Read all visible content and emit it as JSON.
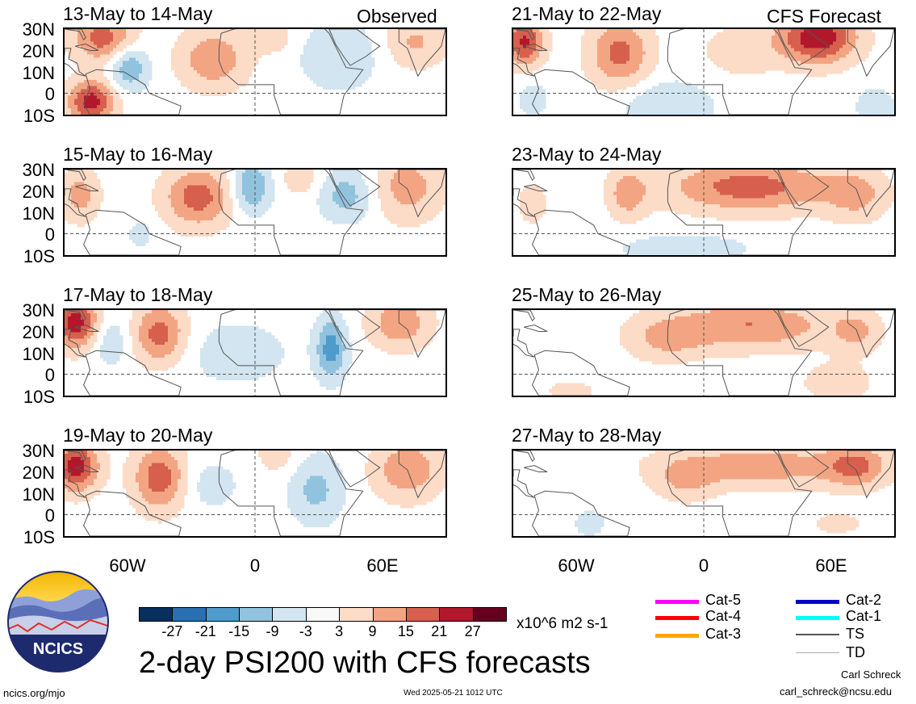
{
  "left_tag": "Observed",
  "right_tag": "CFS Forecast",
  "panels": [
    {
      "title": "13-May to 14-May",
      "blobs": [
        [
          0.1,
          0.1,
          0.08,
          0.28,
          18
        ],
        [
          0.07,
          0.85,
          0.06,
          0.25,
          24
        ],
        [
          0.17,
          0.45,
          0.05,
          0.25,
          -15
        ],
        [
          0.39,
          0.35,
          0.09,
          0.35,
          14
        ],
        [
          0.72,
          0.3,
          0.1,
          0.4,
          -9
        ],
        [
          0.92,
          0.15,
          0.08,
          0.3,
          10
        ],
        [
          0.55,
          0.1,
          0.06,
          0.2,
          6
        ]
      ]
    },
    {
      "title": "15-May to 16-May",
      "blobs": [
        [
          0.04,
          0.3,
          0.05,
          0.3,
          12
        ],
        [
          0.35,
          0.32,
          0.09,
          0.35,
          18
        ],
        [
          0.49,
          0.2,
          0.05,
          0.3,
          -16
        ],
        [
          0.74,
          0.3,
          0.07,
          0.3,
          -12
        ],
        [
          0.9,
          0.2,
          0.09,
          0.4,
          12
        ],
        [
          0.62,
          0.1,
          0.05,
          0.2,
          7
        ],
        [
          0.2,
          0.75,
          0.04,
          0.2,
          -5
        ]
      ]
    },
    {
      "title": "17-May to 18-May",
      "blobs": [
        [
          0.03,
          0.15,
          0.06,
          0.3,
          24
        ],
        [
          0.25,
          0.28,
          0.07,
          0.35,
          18
        ],
        [
          0.7,
          0.45,
          0.04,
          0.35,
          -18
        ],
        [
          0.88,
          0.15,
          0.08,
          0.3,
          14
        ],
        [
          0.45,
          0.5,
          0.15,
          0.4,
          -6
        ],
        [
          0.12,
          0.35,
          0.05,
          0.3,
          -8
        ]
      ]
    },
    {
      "title": "19-May to 20-May",
      "blobs": [
        [
          0.03,
          0.18,
          0.06,
          0.3,
          24
        ],
        [
          0.25,
          0.32,
          0.07,
          0.38,
          19
        ],
        [
          0.66,
          0.45,
          0.07,
          0.4,
          -11
        ],
        [
          0.9,
          0.22,
          0.09,
          0.35,
          14
        ],
        [
          0.38,
          0.4,
          0.08,
          0.3,
          -6
        ],
        [
          0.56,
          0.05,
          0.06,
          0.25,
          6
        ]
      ]
    },
    {
      "title": "21-May to 22-May",
      "blobs": [
        [
          0.03,
          0.15,
          0.05,
          0.3,
          22
        ],
        [
          0.28,
          0.28,
          0.08,
          0.4,
          17
        ],
        [
          0.8,
          0.1,
          0.1,
          0.3,
          26
        ],
        [
          0.4,
          0.9,
          0.12,
          0.3,
          -9
        ],
        [
          0.05,
          0.8,
          0.05,
          0.3,
          -5
        ],
        [
          0.6,
          0.25,
          0.1,
          0.3,
          7
        ],
        [
          0.95,
          0.9,
          0.06,
          0.25,
          -6
        ]
      ]
    },
    {
      "title": "23-May to 24-May",
      "blobs": [
        [
          0.3,
          0.28,
          0.05,
          0.3,
          12
        ],
        [
          0.62,
          0.2,
          0.22,
          0.3,
          18
        ],
        [
          0.9,
          0.3,
          0.08,
          0.3,
          10
        ],
        [
          0.45,
          0.92,
          0.2,
          0.2,
          -6
        ],
        [
          0.05,
          0.4,
          0.05,
          0.3,
          5
        ]
      ]
    },
    {
      "title": "25-May to 26-May",
      "blobs": [
        [
          0.62,
          0.18,
          0.22,
          0.28,
          15
        ],
        [
          0.4,
          0.35,
          0.1,
          0.25,
          9
        ],
        [
          0.9,
          0.25,
          0.06,
          0.25,
          9
        ],
        [
          0.85,
          0.85,
          0.1,
          0.25,
          6
        ],
        [
          0.15,
          0.95,
          0.1,
          0.2,
          4
        ]
      ]
    },
    {
      "title": "27-May to 28-May",
      "blobs": [
        [
          0.65,
          0.18,
          0.25,
          0.25,
          13
        ],
        [
          0.9,
          0.18,
          0.08,
          0.25,
          14
        ],
        [
          0.45,
          0.35,
          0.08,
          0.25,
          8
        ],
        [
          0.2,
          0.85,
          0.05,
          0.2,
          -5
        ],
        [
          0.85,
          0.85,
          0.1,
          0.2,
          4
        ]
      ]
    }
  ],
  "lat_labels": [
    "30N",
    "20N",
    "10N",
    "0",
    "10S"
  ],
  "lon_labels": [
    "60W",
    "0",
    "60E"
  ],
  "colorbar": {
    "colors": [
      "#07305b",
      "#2a6fb1",
      "#4f9bcb",
      "#92c3de",
      "#d2e5f0",
      "#f8f8f8",
      "#fcdbc7",
      "#f3a583",
      "#d6604d",
      "#b2182b",
      "#67001f"
    ],
    "labels": [
      "-27",
      "-21",
      "-15",
      "-9",
      "-3",
      "3",
      "9",
      "15",
      "21",
      "27"
    ]
  },
  "units": "x10^6 m2 s-1",
  "main_title": "2-day PSI200 with CFS forecasts",
  "legend": [
    {
      "label": "Cat-5",
      "color": "#ff00ff"
    },
    {
      "label": "Cat-4",
      "color": "#ff0000"
    },
    {
      "label": "Cat-3",
      "color": "#ffa500"
    },
    {
      "label": "Cat-2",
      "color": "#0000cd"
    },
    {
      "label": "Cat-1",
      "color": "#00ffff"
    },
    {
      "label": "TS",
      "color": "#555555"
    },
    {
      "label": "TD",
      "color": "#aaaaaa"
    }
  ],
  "logo_text": "NCICS",
  "author": "Carl Schreck",
  "email": "carl_schreck@ncsu.edu",
  "website": "ncics.org/mjo",
  "timestamp": "Wed 2025-05-21 1012 UTC"
}
